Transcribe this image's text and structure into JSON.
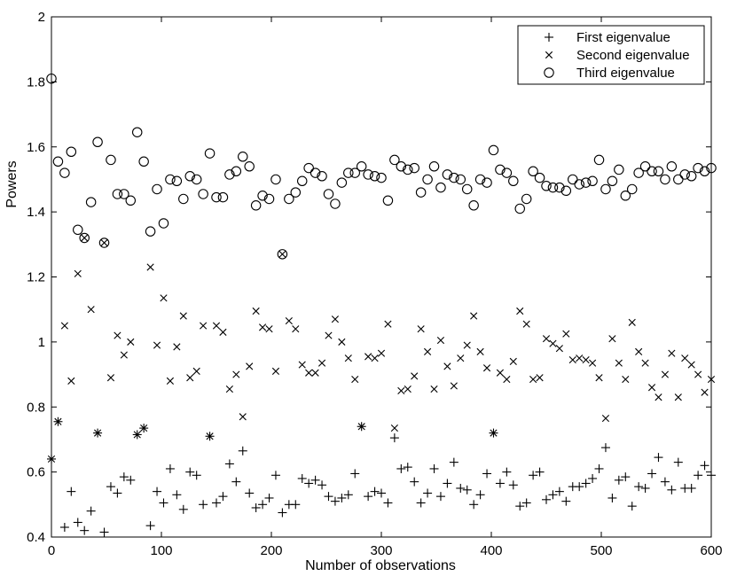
{
  "chart_data": {
    "type": "scatter",
    "title": "",
    "xlabel": "Number of observations",
    "ylabel": "Powers",
    "xlim": [
      0,
      600
    ],
    "ylim": [
      0.4,
      2
    ],
    "xticks": [
      0,
      100,
      200,
      300,
      400,
      500,
      600
    ],
    "yticks": [
      0.4,
      0.6,
      0.8,
      1,
      1.2,
      1.4,
      1.6,
      1.8,
      2
    ],
    "xtick_labels": [
      "0",
      "100",
      "200",
      "300",
      "400",
      "500",
      "600"
    ],
    "ytick_labels": [
      "0.4",
      "0.6",
      "0.8",
      "1",
      "1.2",
      "1.4",
      "1.6",
      "1.8",
      "2"
    ],
    "grid": false,
    "legend_position": "top-right",
    "series": [
      {
        "name": "First eigenvalue",
        "marker": "plus",
        "x": [
          0,
          6,
          12,
          18,
          24,
          30,
          36,
          42,
          48,
          54,
          60,
          66,
          72,
          78,
          84,
          90,
          96,
          102,
          108,
          114,
          120,
          126,
          132,
          138,
          144,
          150,
          156,
          162,
          168,
          174,
          180,
          186,
          192,
          198,
          204,
          210,
          216,
          222,
          228,
          234,
          240,
          246,
          252,
          258,
          264,
          270,
          276,
          282,
          288,
          294,
          300,
          306,
          312,
          318,
          324,
          330,
          336,
          342,
          348,
          354,
          360,
          366,
          372,
          378,
          384,
          390,
          396,
          402,
          408,
          414,
          420,
          426,
          432,
          438,
          444,
          450,
          456,
          462,
          468,
          474,
          480,
          486,
          492,
          498,
          504,
          510,
          516,
          522,
          528,
          534,
          540,
          546,
          552,
          558,
          564,
          570,
          576,
          582,
          588,
          594,
          600
        ],
        "y": [
          0.64,
          0.755,
          0.43,
          0.54,
          0.445,
          0.42,
          0.48,
          0.72,
          0.415,
          0.555,
          0.535,
          0.585,
          0.575,
          0.715,
          0.735,
          0.435,
          0.54,
          0.505,
          0.61,
          0.53,
          0.485,
          0.6,
          0.59,
          0.5,
          0.71,
          0.505,
          0.525,
          0.625,
          0.57,
          0.665,
          0.535,
          0.49,
          0.5,
          0.52,
          0.59,
          0.475,
          0.5,
          0.5,
          0.58,
          0.565,
          0.575,
          0.56,
          0.525,
          0.51,
          0.52,
          0.53,
          0.595,
          0.74,
          0.525,
          0.54,
          0.535,
          0.505,
          0.705,
          0.61,
          0.615,
          0.57,
          0.505,
          0.535,
          0.61,
          0.525,
          0.565,
          0.63,
          0.55,
          0.545,
          0.5,
          0.53,
          0.595,
          0.72,
          0.565,
          0.6,
          0.56,
          0.495,
          0.505,
          0.59,
          0.6,
          0.515,
          0.53,
          0.54,
          0.51,
          0.555,
          0.555,
          0.565,
          0.58,
          0.61,
          0.675,
          0.52,
          0.575,
          0.585,
          0.495,
          0.555,
          0.55,
          0.595,
          0.645,
          0.57,
          0.545,
          0.63,
          0.55,
          0.55,
          0.59,
          0.62,
          0.59
        ]
      },
      {
        "name": "Second eigenvalue",
        "marker": "cross",
        "x": [
          0,
          6,
          12,
          18,
          24,
          30,
          36,
          42,
          48,
          54,
          60,
          66,
          72,
          78,
          84,
          90,
          96,
          102,
          108,
          114,
          120,
          126,
          132,
          138,
          144,
          150,
          156,
          162,
          168,
          174,
          180,
          186,
          192,
          198,
          204,
          210,
          216,
          222,
          228,
          234,
          240,
          246,
          252,
          258,
          264,
          270,
          276,
          282,
          288,
          294,
          300,
          306,
          312,
          318,
          324,
          330,
          336,
          342,
          348,
          354,
          360,
          366,
          372,
          378,
          384,
          390,
          396,
          402,
          408,
          414,
          420,
          426,
          432,
          438,
          444,
          450,
          456,
          462,
          468,
          474,
          480,
          486,
          492,
          498,
          504,
          510,
          516,
          522,
          528,
          534,
          540,
          546,
          552,
          558,
          564,
          570,
          576,
          582,
          588,
          594,
          600
        ],
        "y": [
          0.64,
          0.755,
          1.05,
          0.88,
          1.21,
          1.32,
          1.1,
          0.72,
          1.305,
          0.89,
          1.02,
          0.96,
          1.0,
          0.715,
          0.735,
          1.23,
          0.99,
          1.135,
          0.88,
          0.985,
          1.08,
          0.89,
          0.91,
          1.05,
          0.71,
          1.05,
          1.03,
          0.855,
          0.9,
          0.77,
          0.925,
          1.095,
          1.045,
          1.04,
          0.91,
          1.27,
          1.065,
          1.04,
          0.93,
          0.905,
          0.905,
          0.935,
          1.02,
          1.07,
          1.0,
          0.95,
          0.885,
          0.74,
          0.955,
          0.95,
          0.965,
          1.055,
          0.735,
          0.85,
          0.855,
          0.895,
          1.04,
          0.97,
          0.855,
          1.005,
          0.925,
          0.865,
          0.95,
          0.99,
          1.08,
          0.97,
          0.92,
          0.72,
          0.905,
          0.885,
          0.94,
          1.095,
          1.055,
          0.885,
          0.89,
          1.01,
          0.995,
          0.98,
          1.025,
          0.945,
          0.95,
          0.945,
          0.935,
          0.89,
          0.765,
          1.01,
          0.935,
          0.885,
          1.06,
          0.97,
          0.935,
          0.86,
          0.83,
          0.9,
          0.965,
          0.83,
          0.95,
          0.93,
          0.9,
          0.845,
          0.885
        ]
      },
      {
        "name": "Third eigenvalue",
        "marker": "circle",
        "x": [
          0,
          6,
          12,
          18,
          24,
          30,
          36,
          42,
          48,
          54,
          60,
          66,
          72,
          78,
          84,
          90,
          96,
          102,
          108,
          114,
          120,
          126,
          132,
          138,
          144,
          150,
          156,
          162,
          168,
          174,
          180,
          186,
          192,
          198,
          204,
          210,
          216,
          222,
          228,
          234,
          240,
          246,
          252,
          258,
          264,
          270,
          276,
          282,
          288,
          294,
          300,
          306,
          312,
          318,
          324,
          330,
          336,
          342,
          348,
          354,
          360,
          366,
          372,
          378,
          384,
          390,
          396,
          402,
          408,
          414,
          420,
          426,
          432,
          438,
          444,
          450,
          456,
          462,
          468,
          474,
          480,
          486,
          492,
          498,
          504,
          510,
          516,
          522,
          528,
          534,
          540,
          546,
          552,
          558,
          564,
          570,
          576,
          582,
          588,
          594,
          600
        ],
        "y": [
          1.81,
          1.555,
          1.52,
          1.585,
          1.345,
          1.32,
          1.43,
          1.615,
          1.305,
          1.56,
          1.455,
          1.455,
          1.435,
          1.645,
          1.555,
          1.34,
          1.47,
          1.365,
          1.5,
          1.495,
          1.44,
          1.51,
          1.5,
          1.455,
          1.58,
          1.445,
          1.445,
          1.515,
          1.525,
          1.57,
          1.54,
          1.42,
          1.45,
          1.44,
          1.5,
          1.27,
          1.44,
          1.46,
          1.495,
          1.535,
          1.52,
          1.51,
          1.455,
          1.425,
          1.49,
          1.52,
          1.52,
          1.54,
          1.515,
          1.51,
          1.505,
          1.435,
          1.56,
          1.54,
          1.53,
          1.535,
          1.46,
          1.5,
          1.54,
          1.475,
          1.515,
          1.505,
          1.5,
          1.47,
          1.42,
          1.5,
          1.49,
          1.59,
          1.53,
          1.52,
          1.495,
          1.41,
          1.44,
          1.525,
          1.505,
          1.48,
          1.475,
          1.475,
          1.465,
          1.5,
          1.485,
          1.49,
          1.495,
          1.56,
          1.47,
          1.495,
          1.53,
          1.45,
          1.47,
          1.52,
          1.54,
          1.525,
          1.525,
          1.5,
          1.54,
          1.5,
          1.515,
          1.51,
          1.535,
          1.525,
          1.535
        ]
      }
    ]
  }
}
